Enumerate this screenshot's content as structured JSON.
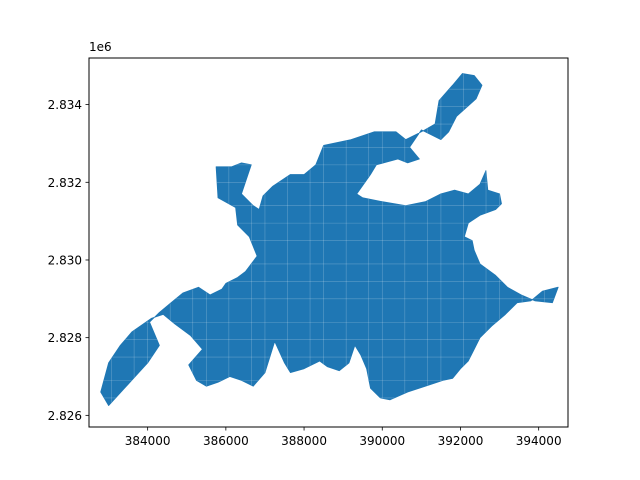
{
  "chart_data": {
    "type": "map",
    "title": "",
    "xlabel": "",
    "ylabel": "",
    "y_offset_label": "1e6",
    "xlim": [
      382500,
      394750
    ],
    "ylim": [
      2825700,
      2835200
    ],
    "x_ticks": [
      384000,
      386000,
      388000,
      390000,
      392000,
      394000
    ],
    "x_tick_labels": [
      "384000",
      "386000",
      "388000",
      "390000",
      "392000",
      "394000"
    ],
    "y_ticks": [
      2826000,
      2828000,
      2830000,
      2832000,
      2834000
    ],
    "y_tick_labels": [
      "2.826",
      "2.828",
      "2.830",
      "2.832",
      "2.834"
    ],
    "grid": false,
    "fill_color": "#1f77b4",
    "edge_color": "#ffffff",
    "axes_color": "#000000",
    "polygon": [
      [
        383000,
        2826250
      ],
      [
        383500,
        2826800
      ],
      [
        384000,
        2827350
      ],
      [
        384300,
        2827800
      ],
      [
        384050,
        2828400
      ],
      [
        384300,
        2828650
      ],
      [
        384600,
        2828900
      ],
      [
        384900,
        2829150
      ],
      [
        385300,
        2829300
      ],
      [
        385600,
        2829100
      ],
      [
        385900,
        2829250
      ],
      [
        386000,
        2829400
      ],
      [
        386300,
        2829550
      ],
      [
        386500,
        2829700
      ],
      [
        386800,
        2830100
      ],
      [
        386600,
        2830600
      ],
      [
        386300,
        2830900
      ],
      [
        386250,
        2831350
      ],
      [
        385800,
        2831600
      ],
      [
        385750,
        2832400
      ],
      [
        386150,
        2832400
      ],
      [
        386400,
        2832500
      ],
      [
        386650,
        2832450
      ],
      [
        386400,
        2831700
      ],
      [
        386700,
        2831400
      ],
      [
        386850,
        2831300
      ],
      [
        386950,
        2831650
      ],
      [
        387200,
        2831900
      ],
      [
        387650,
        2832200
      ],
      [
        388000,
        2832200
      ],
      [
        388300,
        2832450
      ],
      [
        388500,
        2832950
      ],
      [
        389200,
        2833100
      ],
      [
        389800,
        2833300
      ],
      [
        390350,
        2833300
      ],
      [
        390600,
        2833100
      ],
      [
        391000,
        2833300
      ],
      [
        391350,
        2833500
      ],
      [
        391450,
        2834100
      ],
      [
        391800,
        2834500
      ],
      [
        392050,
        2834800
      ],
      [
        392350,
        2834750
      ],
      [
        392550,
        2834500
      ],
      [
        392400,
        2834150
      ],
      [
        391900,
        2833700
      ],
      [
        391700,
        2833300
      ],
      [
        391500,
        2833100
      ],
      [
        391000,
        2833350
      ],
      [
        390700,
        2832900
      ],
      [
        390950,
        2832600
      ],
      [
        390650,
        2832500
      ],
      [
        390400,
        2832600
      ],
      [
        389850,
        2832450
      ],
      [
        389700,
        2832200
      ],
      [
        389350,
        2831700
      ],
      [
        389500,
        2831600
      ],
      [
        390000,
        2831500
      ],
      [
        390600,
        2831400
      ],
      [
        391100,
        2831500
      ],
      [
        391500,
        2831700
      ],
      [
        391850,
        2831800
      ],
      [
        392200,
        2831700
      ],
      [
        392500,
        2831950
      ],
      [
        392650,
        2832300
      ],
      [
        392700,
        2831800
      ],
      [
        393000,
        2831700
      ],
      [
        393050,
        2831450
      ],
      [
        392900,
        2831300
      ],
      [
        392500,
        2831150
      ],
      [
        392200,
        2830950
      ],
      [
        392100,
        2830600
      ],
      [
        392300,
        2830500
      ],
      [
        392350,
        2830250
      ],
      [
        392500,
        2829900
      ],
      [
        392900,
        2829600
      ],
      [
        393200,
        2829300
      ],
      [
        393550,
        2829100
      ],
      [
        393900,
        2828950
      ],
      [
        394350,
        2828900
      ],
      [
        394500,
        2829300
      ],
      [
        394100,
        2829200
      ],
      [
        393800,
        2828950
      ],
      [
        393450,
        2828900
      ],
      [
        393150,
        2828600
      ],
      [
        392800,
        2828300
      ],
      [
        392500,
        2828000
      ],
      [
        392350,
        2827700
      ],
      [
        392200,
        2827400
      ],
      [
        392000,
        2827200
      ],
      [
        391800,
        2826950
      ],
      [
        391550,
        2826900
      ],
      [
        391100,
        2826750
      ],
      [
        390650,
        2826600
      ],
      [
        390200,
        2826400
      ],
      [
        389950,
        2826450
      ],
      [
        389700,
        2826700
      ],
      [
        389600,
        2827200
      ],
      [
        389450,
        2827550
      ],
      [
        389300,
        2827800
      ],
      [
        389150,
        2827350
      ],
      [
        388900,
        2827150
      ],
      [
        388600,
        2827250
      ],
      [
        388400,
        2827400
      ],
      [
        388000,
        2827200
      ],
      [
        387650,
        2827100
      ],
      [
        387500,
        2827350
      ],
      [
        387250,
        2827900
      ],
      [
        387000,
        2827100
      ],
      [
        386700,
        2826750
      ],
      [
        386400,
        2826900
      ],
      [
        386100,
        2827000
      ],
      [
        385800,
        2826850
      ],
      [
        385500,
        2826750
      ],
      [
        385250,
        2826900
      ],
      [
        385050,
        2827300
      ],
      [
        385400,
        2827700
      ],
      [
        385100,
        2828050
      ],
      [
        384700,
        2828350
      ],
      [
        384400,
        2828600
      ],
      [
        384100,
        2828500
      ],
      [
        383600,
        2828150
      ],
      [
        383300,
        2827800
      ],
      [
        383000,
        2827350
      ],
      [
        382800,
        2826600
      ]
    ]
  }
}
